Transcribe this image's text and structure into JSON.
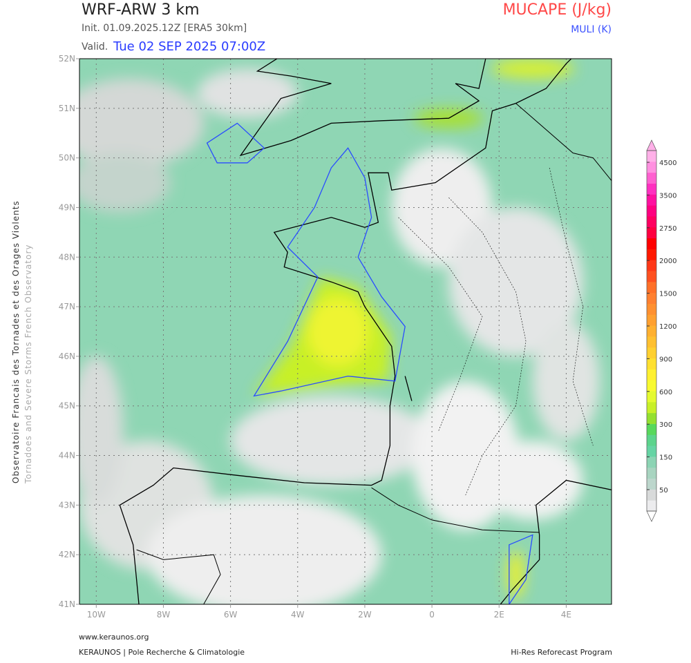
{
  "header": {
    "title": "WRF-ARW 3 km",
    "init": "Init.   01.09.2025.12Z [ERA5 30km]",
    "valid_label": "Valid.",
    "valid": "Tue 02 SEP 2025 07:00Z",
    "field": "MUCAPE (J/kg)",
    "contour": "MULI (K)"
  },
  "side": {
    "line1": "Observatoire Francais des Tornades et des Orages Violents",
    "line2": "Tornadoes and Severe Storms French Observatory"
  },
  "map": {
    "lon_range": [
      -10.5,
      5.35
    ],
    "lat_range": [
      41,
      52
    ],
    "lat_ticks": [
      "52N",
      "51N",
      "50N",
      "49N",
      "48N",
      "47N",
      "46N",
      "45N",
      "44N",
      "43N",
      "42N",
      "41N"
    ],
    "lon_ticks": [
      "10W",
      "8W",
      "6W",
      "4W",
      "2W",
      "0",
      "2E",
      "4E"
    ],
    "background": "#8fd6b4",
    "contour_color": "#2a4cff"
  },
  "colorbar": {
    "labels": [
      "4500",
      "3500",
      "2750",
      "2000",
      "1500",
      "1200",
      "900",
      "600",
      "300",
      "150",
      "50"
    ],
    "colors": [
      "#ececee",
      "#d8dada",
      "#bcd6cc",
      "#a8d4c0",
      "#8cd4b4",
      "#66d4a4",
      "#5cd48c",
      "#58d85c",
      "#94e030",
      "#c8f028",
      "#e4fa30",
      "#f8fa30",
      "#fff030",
      "#ffe030",
      "#ffd030",
      "#ffc030",
      "#ffb030",
      "#ffa030",
      "#ff9030",
      "#ff8030",
      "#ff7028",
      "#ff5020",
      "#ff3818",
      "#ff1800",
      "#ff0000",
      "#ff0040",
      "#ff0060",
      "#ff0080",
      "#ff10a0",
      "#ff30c0",
      "#ff60d0",
      "#ff90e0",
      "#ffb0e8"
    ]
  },
  "footer": {
    "website": "www.keraunos.org",
    "org": "KERAUNOS | Pole Recherche & Climatologie",
    "program": "Hi-Res Reforecast Program"
  }
}
